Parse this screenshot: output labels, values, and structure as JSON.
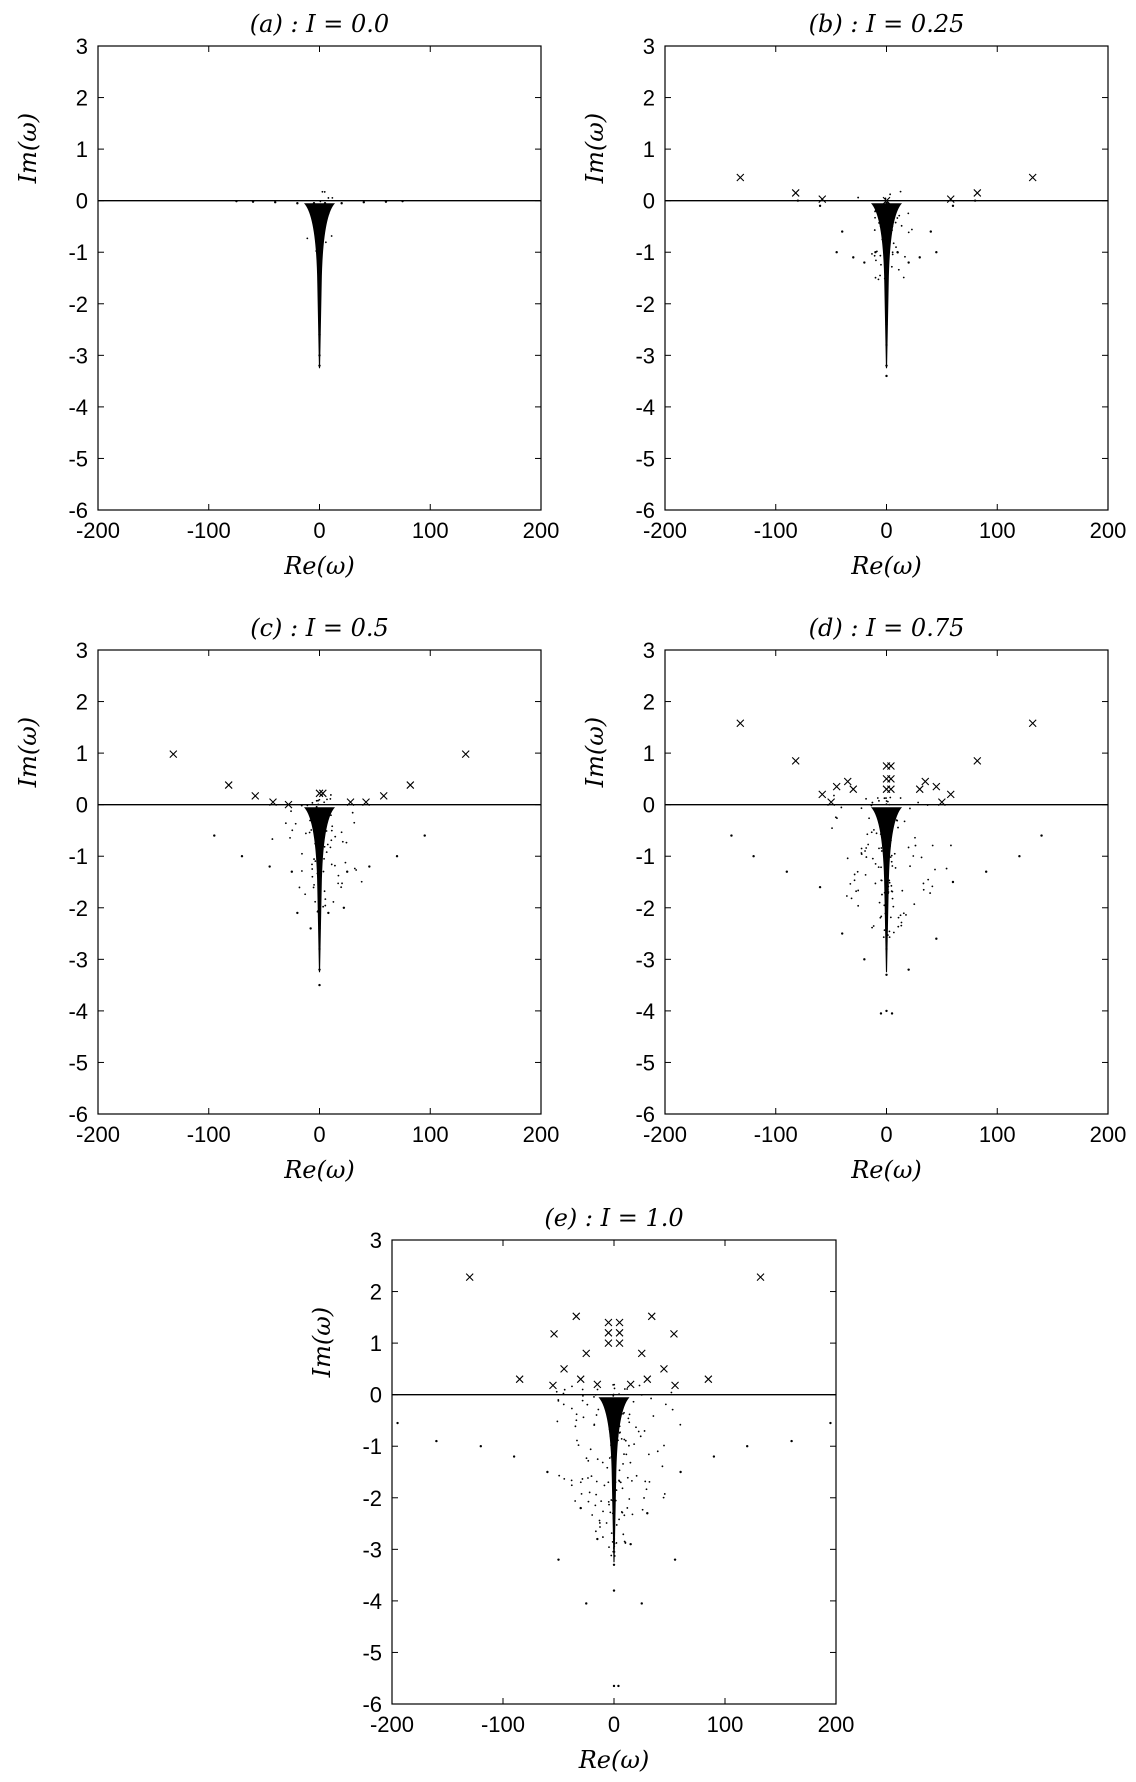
{
  "chart_data": [
    {
      "type": "scatter",
      "title": "(a) : I = 0.0",
      "xlabel": "Re(ω)",
      "ylabel": "Im(ω)",
      "xlim": [
        -200,
        200
      ],
      "ylim": [
        -6,
        3
      ],
      "xticks": [
        "-200",
        "-100",
        "0",
        "100",
        "200"
      ],
      "yticks": [
        "-6",
        "-5",
        "-4",
        "-3",
        "-2",
        "-1",
        "0",
        "1",
        "2",
        "3"
      ],
      "reference_line_y": 0,
      "grid": false,
      "series": [
        {
          "marker": "dot",
          "points": [
            [
              0,
              -3.2
            ],
            [
              0,
              -3.0
            ],
            [
              0,
              -2.6
            ],
            [
              0,
              -2.2
            ],
            [
              0,
              -1.8
            ],
            [
              0,
              -1.4
            ],
            [
              0,
              -1.0
            ],
            [
              -1,
              -0.6
            ],
            [
              1,
              -0.6
            ],
            [
              -2,
              -0.3
            ],
            [
              2,
              -0.3
            ],
            [
              -3,
              -0.1
            ],
            [
              3,
              -0.1
            ],
            [
              -5,
              -0.05
            ],
            [
              5,
              -0.05
            ],
            [
              -10,
              -0.08
            ],
            [
              10,
              -0.08
            ],
            [
              -20,
              -0.05
            ],
            [
              20,
              -0.05
            ],
            [
              -40,
              -0.03
            ],
            [
              40,
              -0.03
            ],
            [
              -60,
              -0.02
            ],
            [
              60,
              -0.02
            ],
            [
              -75,
              -0.01
            ],
            [
              75,
              -0.01
            ]
          ]
        },
        {
          "marker": "cross",
          "points": []
        }
      ]
    },
    {
      "type": "scatter",
      "title": "(b) : I = 0.25",
      "xlabel": "Re(ω)",
      "ylabel": "Im(ω)",
      "xlim": [
        -200,
        200
      ],
      "ylim": [
        -6,
        3
      ],
      "xticks": [
        "-200",
        "-100",
        "0",
        "100",
        "200"
      ],
      "yticks": [
        "-6",
        "-5",
        "-4",
        "-3",
        "-2",
        "-1",
        "0",
        "1",
        "2",
        "3"
      ],
      "reference_line_y": 0,
      "grid": false,
      "series": [
        {
          "marker": "dot",
          "points": [
            [
              0,
              -3.4
            ],
            [
              0,
              -3.2
            ],
            [
              0,
              -2.8
            ],
            [
              0,
              -2.4
            ],
            [
              0,
              -2.0
            ],
            [
              0,
              -1.6
            ],
            [
              0,
              -1.2
            ],
            [
              -2,
              -0.8
            ],
            [
              2,
              -0.8
            ],
            [
              -5,
              -0.5
            ],
            [
              5,
              -0.5
            ],
            [
              -10,
              -1.0
            ],
            [
              10,
              -1.0
            ],
            [
              -20,
              -1.2
            ],
            [
              20,
              -1.2
            ],
            [
              -30,
              -1.1
            ],
            [
              30,
              -1.1
            ],
            [
              -45,
              -1.0
            ],
            [
              45,
              -1.0
            ],
            [
              -40,
              -0.6
            ],
            [
              40,
              -0.6
            ],
            [
              -60,
              -0.1
            ],
            [
              60,
              -0.1
            ],
            [
              -80,
              0.0
            ],
            [
              80,
              0.0
            ]
          ]
        },
        {
          "marker": "cross",
          "points": [
            [
              -132,
              0.45
            ],
            [
              132,
              0.45
            ],
            [
              -82,
              0.15
            ],
            [
              82,
              0.15
            ],
            [
              -58,
              0.03
            ],
            [
              58,
              0.03
            ],
            [
              0,
              0.0
            ]
          ]
        }
      ]
    },
    {
      "type": "scatter",
      "title": "(c) : I = 0.5",
      "xlabel": "Re(ω)",
      "ylabel": "Im(ω)",
      "xlim": [
        -200,
        200
      ],
      "ylim": [
        -6,
        3
      ],
      "xticks": [
        "-200",
        "-100",
        "0",
        "100",
        "200"
      ],
      "yticks": [
        "-6",
        "-5",
        "-4",
        "-3",
        "-2",
        "-1",
        "0",
        "1",
        "2",
        "3"
      ],
      "reference_line_y": 0,
      "grid": false,
      "series": [
        {
          "marker": "dot",
          "points": [
            [
              0,
              -3.5
            ],
            [
              0,
              -3.2
            ],
            [
              0,
              -2.8
            ],
            [
              0,
              -2.4
            ],
            [
              0,
              -2.0
            ],
            [
              0,
              -1.6
            ],
            [
              0,
              -1.2
            ],
            [
              -2,
              -0.8
            ],
            [
              2,
              -0.8
            ],
            [
              -8,
              -2.4
            ],
            [
              8,
              -2.1
            ],
            [
              -25,
              -1.3
            ],
            [
              25,
              -1.3
            ],
            [
              -45,
              -1.2
            ],
            [
              45,
              -1.2
            ],
            [
              -70,
              -1.0
            ],
            [
              70,
              -1.0
            ],
            [
              -95,
              -0.6
            ],
            [
              95,
              -0.6
            ],
            [
              -20,
              -2.1
            ],
            [
              22,
              -2.0
            ]
          ]
        },
        {
          "marker": "cross",
          "points": [
            [
              -132,
              0.98
            ],
            [
              132,
              0.98
            ],
            [
              -82,
              0.38
            ],
            [
              82,
              0.38
            ],
            [
              -58,
              0.17
            ],
            [
              58,
              0.17
            ],
            [
              -42,
              0.05
            ],
            [
              42,
              0.05
            ],
            [
              -28,
              0.0
            ],
            [
              28,
              0.05
            ],
            [
              0,
              0.22
            ],
            [
              3,
              0.22
            ]
          ]
        }
      ]
    },
    {
      "type": "scatter",
      "title": "(d) : I = 0.75",
      "xlabel": "Re(ω)",
      "ylabel": "Im(ω)",
      "xlim": [
        -200,
        200
      ],
      "ylim": [
        -6,
        3
      ],
      "xticks": [
        "-200",
        "-100",
        "0",
        "100",
        "200"
      ],
      "yticks": [
        "-6",
        "-5",
        "-4",
        "-3",
        "-2",
        "-1",
        "0",
        "1",
        "2",
        "3"
      ],
      "reference_line_y": 0,
      "grid": false,
      "series": [
        {
          "marker": "dot",
          "points": [
            [
              0,
              -4.0
            ],
            [
              0,
              -3.3
            ],
            [
              0,
              -2.8
            ],
            [
              0,
              -2.4
            ],
            [
              0,
              -2.0
            ],
            [
              0,
              -1.6
            ],
            [
              0,
              -1.2
            ],
            [
              -3,
              -0.8
            ],
            [
              3,
              -0.8
            ],
            [
              -140,
              -0.6
            ],
            [
              140,
              -0.6
            ],
            [
              -120,
              -1.0
            ],
            [
              120,
              -1.0
            ],
            [
              -90,
              -1.3
            ],
            [
              90,
              -1.3
            ],
            [
              -60,
              -1.6
            ],
            [
              60,
              -1.5
            ],
            [
              -40,
              -2.5
            ],
            [
              45,
              -2.6
            ],
            [
              -20,
              -3.0
            ],
            [
              20,
              -3.2
            ],
            [
              -5,
              -4.05
            ],
            [
              5,
              -4.05
            ]
          ]
        },
        {
          "marker": "cross",
          "points": [
            [
              -132,
              1.58
            ],
            [
              132,
              1.58
            ],
            [
              -82,
              0.85
            ],
            [
              82,
              0.85
            ],
            [
              -58,
              0.2
            ],
            [
              58,
              0.2
            ],
            [
              -45,
              0.35
            ],
            [
              45,
              0.35
            ],
            [
              -35,
              0.45
            ],
            [
              35,
              0.45
            ],
            [
              -30,
              0.3
            ],
            [
              30,
              0.3
            ],
            [
              0,
              0.75
            ],
            [
              4,
              0.75
            ],
            [
              0,
              0.5
            ],
            [
              4,
              0.5
            ],
            [
              0,
              0.3
            ],
            [
              4,
              0.3
            ],
            [
              -50,
              0.05
            ],
            [
              50,
              0.05
            ]
          ]
        }
      ]
    },
    {
      "type": "scatter",
      "title": "(e) : I = 1.0",
      "xlabel": "Re(ω)",
      "ylabel": "Im(ω)",
      "xlim": [
        -200,
        200
      ],
      "ylim": [
        -6,
        3
      ],
      "xticks": [
        "-200",
        "-100",
        "0",
        "100",
        "200"
      ],
      "yticks": [
        "-6",
        "-5",
        "-4",
        "-3",
        "-2",
        "-1",
        "0",
        "1",
        "2",
        "3"
      ],
      "reference_line_y": 0,
      "grid": false,
      "series": [
        {
          "marker": "dot",
          "points": [
            [
              0,
              -5.65
            ],
            [
              4,
              -5.65
            ],
            [
              0,
              -3.8
            ],
            [
              0,
              -3.3
            ],
            [
              0,
              -2.8
            ],
            [
              0,
              -2.4
            ],
            [
              0,
              -2.0
            ],
            [
              0,
              -1.6
            ],
            [
              0,
              -1.2
            ],
            [
              -3,
              -0.8
            ],
            [
              3,
              -0.8
            ],
            [
              -195,
              -0.55
            ],
            [
              195,
              -0.55
            ],
            [
              -160,
              -0.9
            ],
            [
              160,
              -0.9
            ],
            [
              -120,
              -1.0
            ],
            [
              120,
              -1.0
            ],
            [
              -90,
              -1.2
            ],
            [
              90,
              -1.2
            ],
            [
              -60,
              -1.5
            ],
            [
              60,
              -1.5
            ],
            [
              -50,
              -3.2
            ],
            [
              55,
              -3.2
            ],
            [
              -25,
              -4.05
            ],
            [
              25,
              -4.05
            ],
            [
              -30,
              -2.2
            ],
            [
              30,
              -2.3
            ],
            [
              -15,
              -2.8
            ],
            [
              15,
              -2.9
            ]
          ]
        },
        {
          "marker": "cross",
          "points": [
            [
              -130,
              2.28
            ],
            [
              132,
              2.28
            ],
            [
              -85,
              0.3
            ],
            [
              85,
              0.3
            ],
            [
              -54,
              1.18
            ],
            [
              54,
              1.18
            ],
            [
              -34,
              1.52
            ],
            [
              34,
              1.52
            ],
            [
              -5,
              1.4
            ],
            [
              5,
              1.4
            ],
            [
              -5,
              1.2
            ],
            [
              5,
              1.2
            ],
            [
              -5,
              1.0
            ],
            [
              5,
              1.0
            ],
            [
              -25,
              0.8
            ],
            [
              25,
              0.8
            ],
            [
              -45,
              0.5
            ],
            [
              45,
              0.5
            ],
            [
              -30,
              0.3
            ],
            [
              30,
              0.3
            ],
            [
              -55,
              0.18
            ],
            [
              55,
              0.18
            ],
            [
              -15,
              0.2
            ],
            [
              15,
              0.2
            ]
          ]
        }
      ]
    }
  ]
}
